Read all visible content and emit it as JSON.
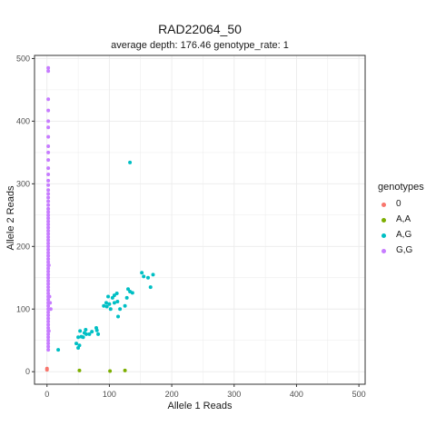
{
  "chart_data": {
    "type": "scatter",
    "title": "RAD22064_50",
    "subtitle": "average depth:  176.46  genotype_rate:  1",
    "xlabel": "Allele 1 Reads",
    "ylabel": "Allele 2 Reads",
    "xlim": [
      -20,
      510
    ],
    "ylim": [
      -20,
      505
    ],
    "xticks": [
      "0",
      "100",
      "200",
      "300",
      "400",
      "500"
    ],
    "yticks": [
      "0",
      "100",
      "200",
      "300",
      "400",
      "500"
    ],
    "grid": true,
    "legend": {
      "title": "genotypes",
      "position": "right"
    },
    "series": [
      {
        "name": "0",
        "color": "#F8766D",
        "points": [
          [
            0,
            3
          ],
          [
            0,
            5
          ]
        ]
      },
      {
        "name": "A,A",
        "color": "#7CAE00",
        "points": [
          [
            52,
            2
          ],
          [
            101,
            1
          ],
          [
            125,
            2
          ]
        ]
      },
      {
        "name": "A,G",
        "color": "#00BFC4",
        "points": [
          [
            133,
            334
          ],
          [
            18,
            35
          ],
          [
            47,
            45
          ],
          [
            50,
            38
          ],
          [
            52,
            42
          ],
          [
            50,
            55
          ],
          [
            55,
            56
          ],
          [
            58,
            55
          ],
          [
            60,
            62
          ],
          [
            53,
            65
          ],
          [
            63,
            60
          ],
          [
            62,
            67
          ],
          [
            72,
            64
          ],
          [
            68,
            60
          ],
          [
            79,
            70
          ],
          [
            82,
            60
          ],
          [
            80,
            66
          ],
          [
            91,
            105
          ],
          [
            96,
            104
          ],
          [
            95,
            110
          ],
          [
            100,
            108
          ],
          [
            102,
            100
          ],
          [
            98,
            120
          ],
          [
            105,
            118
          ],
          [
            108,
            122
          ],
          [
            112,
            125
          ],
          [
            108,
            110
          ],
          [
            113,
            112
          ],
          [
            114,
            88
          ],
          [
            117,
            100
          ],
          [
            125,
            105
          ],
          [
            128,
            118
          ],
          [
            130,
            132
          ],
          [
            133,
            128
          ],
          [
            137,
            126
          ],
          [
            152,
            158
          ],
          [
            155,
            152
          ],
          [
            162,
            150
          ],
          [
            170,
            155
          ],
          [
            166,
            135
          ]
        ]
      },
      {
        "name": "G,G",
        "color": "#C77CFF",
        "points": [
          [
            2,
            485
          ],
          [
            2,
            480
          ],
          [
            2,
            435
          ],
          [
            2,
            417
          ],
          [
            2,
            400
          ],
          [
            2,
            390
          ],
          [
            2,
            375
          ],
          [
            2,
            360
          ],
          [
            2,
            350
          ],
          [
            2,
            338
          ],
          [
            2,
            325
          ],
          [
            2,
            315
          ],
          [
            2,
            305
          ],
          [
            2,
            298
          ],
          [
            2,
            290
          ],
          [
            2,
            284
          ],
          [
            2,
            278
          ],
          [
            2,
            272
          ],
          [
            2,
            266
          ],
          [
            2,
            260
          ],
          [
            2,
            255
          ],
          [
            2,
            250
          ],
          [
            2,
            245
          ],
          [
            2,
            240
          ],
          [
            2,
            235
          ],
          [
            2,
            230
          ],
          [
            2,
            225
          ],
          [
            2,
            220
          ],
          [
            2,
            215
          ],
          [
            2,
            210
          ],
          [
            2,
            205
          ],
          [
            2,
            200
          ],
          [
            2,
            195
          ],
          [
            2,
            190
          ],
          [
            2,
            185
          ],
          [
            2,
            180
          ],
          [
            2,
            175
          ],
          [
            2,
            170
          ],
          [
            2,
            165
          ],
          [
            2,
            160
          ],
          [
            2,
            155
          ],
          [
            2,
            150
          ],
          [
            2,
            145
          ],
          [
            2,
            140
          ],
          [
            2,
            135
          ],
          [
            2,
            130
          ],
          [
            2,
            125
          ],
          [
            2,
            120
          ],
          [
            2,
            115
          ],
          [
            2,
            110
          ],
          [
            2,
            105
          ],
          [
            2,
            100
          ],
          [
            2,
            95
          ],
          [
            2,
            90
          ],
          [
            2,
            85
          ],
          [
            2,
            80
          ],
          [
            2,
            75
          ],
          [
            2,
            70
          ],
          [
            2,
            65
          ],
          [
            2,
            60
          ],
          [
            2,
            55
          ],
          [
            2,
            50
          ],
          [
            2,
            45
          ],
          [
            2,
            40
          ],
          [
            2,
            35
          ],
          [
            3,
            170
          ],
          [
            4,
            120
          ],
          [
            5,
            110
          ],
          [
            6,
            100
          ],
          [
            3,
            65
          ]
        ]
      }
    ]
  }
}
